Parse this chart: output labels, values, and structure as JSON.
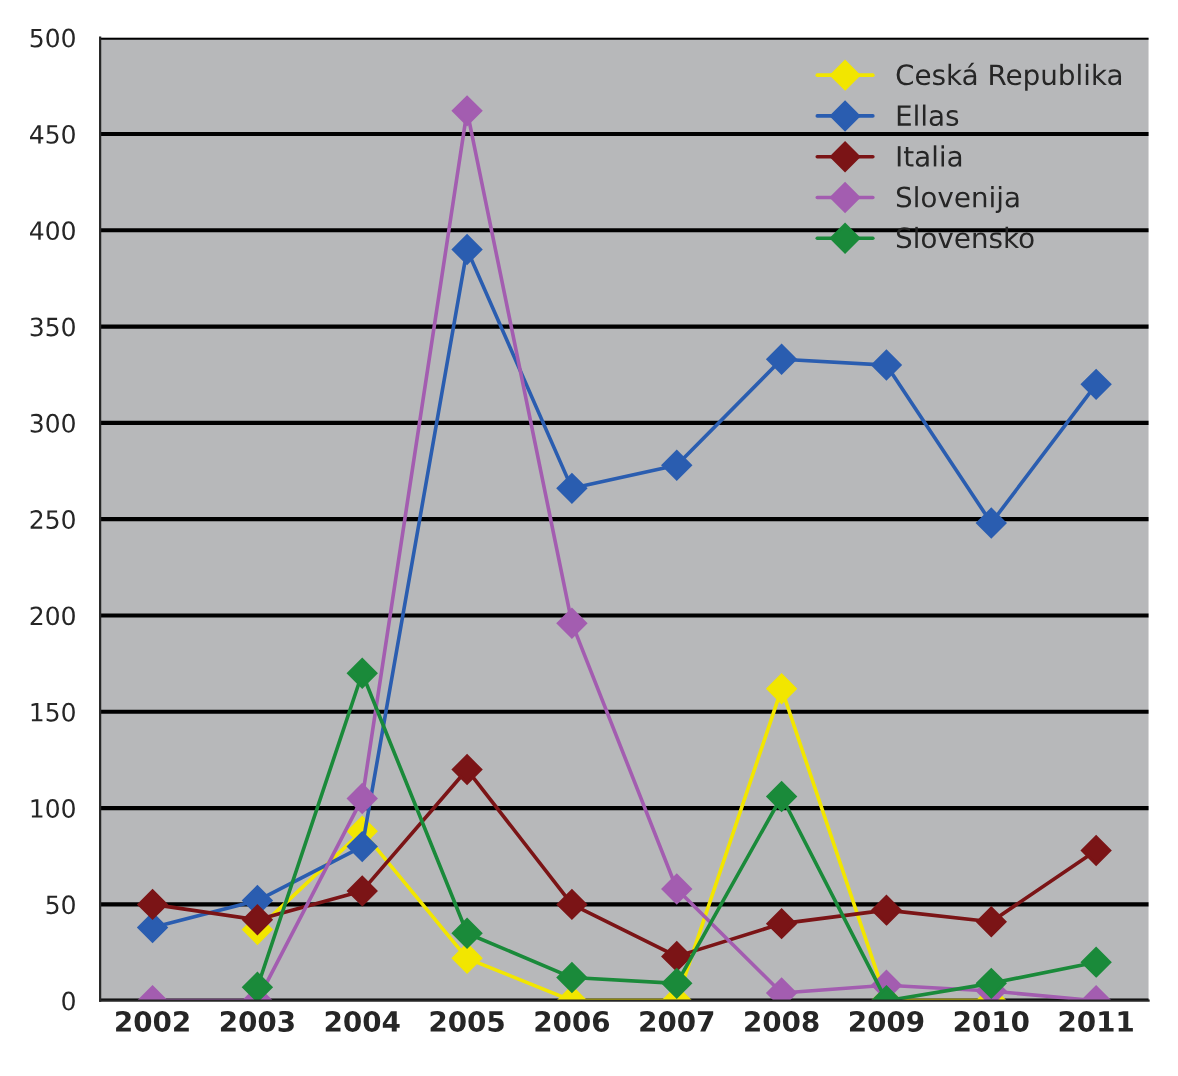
{
  "chart_data": {
    "type": "line",
    "categories": [
      "2002",
      "2003",
      "2004",
      "2005",
      "2006",
      "2007",
      "2008",
      "2009",
      "2010",
      "2011"
    ],
    "series": [
      {
        "name": "Ceská Republika",
        "color": "#f2e600",
        "values": [
          null,
          37,
          88,
          22,
          0,
          0,
          162,
          0,
          0,
          null
        ]
      },
      {
        "name": "Ellas",
        "color": "#2a5db0",
        "values": [
          38,
          52,
          80,
          390,
          266,
          278,
          333,
          330,
          248,
          320
        ]
      },
      {
        "name": "Italia",
        "color": "#7b1416",
        "values": [
          50,
          42,
          57,
          120,
          50,
          23,
          40,
          47,
          41,
          78
        ]
      },
      {
        "name": "Slovenija",
        "color": "#a35db0",
        "values": [
          0,
          0,
          105,
          462,
          196,
          58,
          4,
          8,
          5,
          0
        ]
      },
      {
        "name": "Slovensko",
        "color": "#1a8a3a",
        "values": [
          null,
          7,
          170,
          35,
          12,
          9,
          106,
          0,
          9,
          20
        ]
      }
    ],
    "ylim": [
      0,
      500
    ],
    "yticks": [
      0,
      50,
      100,
      150,
      200,
      250,
      300,
      350,
      400,
      450,
      500
    ],
    "grid": "y",
    "legend": "top right",
    "marker": "diamond",
    "line_style": "solid"
  }
}
